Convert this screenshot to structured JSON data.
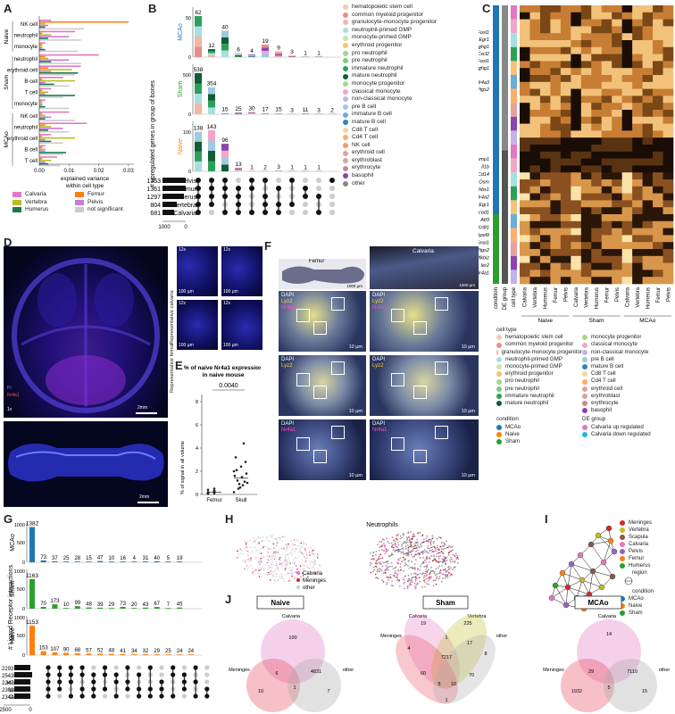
{
  "labels": {
    "A": "A",
    "B": "B",
    "C": "C",
    "D": "D",
    "E": "E",
    "F": "F",
    "G": "G",
    "H": "H",
    "I": "I",
    "J": "J"
  },
  "panelA": {
    "xlabel": "explained variance\nwithin cell type",
    "xticks": [
      "0.00",
      "0.01",
      "0.02",
      "0.03"
    ],
    "groups": [
      {
        "name": "Naive",
        "rows": [
          "NK cell",
          "neutrophil",
          "monocyte"
        ]
      },
      {
        "name": "Sham",
        "rows": [
          "neutrophil",
          "erythroid cell",
          "B cell",
          "T cell",
          "monocyte"
        ]
      },
      {
        "name": "MCAo",
        "rows": [
          "NK cell",
          "neutrophil",
          "erythroid cell",
          "B cell",
          "T cell"
        ]
      }
    ],
    "legend": [
      {
        "label": "Calvaria",
        "color": "#e377c2"
      },
      {
        "label": "Femur",
        "color": "#ff7f0e"
      },
      {
        "label": "Vertebra",
        "color": "#bcbd22"
      },
      {
        "label": "Pelvis",
        "color": "#c77cd8"
      },
      {
        "label": "Humerus",
        "color": "#1a7a4c"
      },
      {
        "label": "not significant",
        "color": "#cccccc"
      }
    ]
  },
  "panelB": {
    "ylabel": "# upregulated genes in group of bones",
    "conditions": [
      {
        "name": "MCAo",
        "color": "#1f77b4",
        "values": [
          62,
          12,
          40,
          6,
          4,
          19,
          9,
          3,
          1,
          1
        ],
        "ytick": "50"
      },
      {
        "name": "Sham",
        "color": "#2ca02c",
        "values": [
          538,
          354,
          15,
          25,
          30,
          17,
          15,
          3,
          11,
          3,
          2
        ],
        "ytick": "500"
      },
      {
        "name": "Naive",
        "color": "#ff7f0e",
        "values": [
          138,
          143,
          96,
          13,
          1,
          2,
          3,
          1,
          1,
          1
        ],
        "ytick": "100"
      }
    ],
    "setnames": [
      "Pelvis",
      "Femur",
      "Humerus",
      "Vertebra",
      "Calvaria"
    ],
    "setsizes": [
      "1353",
      "1361",
      "1297",
      "804",
      "681"
    ],
    "sizetick": "1000",
    "zero": "0",
    "legend": [
      {
        "label": "hematopoietic stem cell",
        "color": "#f4c9b4"
      },
      {
        "label": "common myeloid progenitor",
        "color": "#e88d8d"
      },
      {
        "label": "granulocyte-monocyte progenitor",
        "color": "#f2b8a2"
      },
      {
        "label": "neutrophil-primed GMP",
        "color": "#a6dfe0"
      },
      {
        "label": "monocyte-primed GMP",
        "color": "#c8e6a0"
      },
      {
        "label": "erythroid progenitor",
        "color": "#f6c27a"
      },
      {
        "label": "pro neutrophil",
        "color": "#9ed690"
      },
      {
        "label": "pre neutrophil",
        "color": "#7fc97f"
      },
      {
        "label": "immature neutrophil",
        "color": "#2ca05a"
      },
      {
        "label": "mature neutrophil",
        "color": "#0f5e36"
      },
      {
        "label": "monocyte progenitor",
        "color": "#a3d88c"
      },
      {
        "label": "classical monocyte",
        "color": "#f3a5c8"
      },
      {
        "label": "non-classical monocyte",
        "color": "#c3b3e8"
      },
      {
        "label": "pre B cell",
        "color": "#9ecae1"
      },
      {
        "label": "immature B cell",
        "color": "#6baed6"
      },
      {
        "label": "mature B cell",
        "color": "#3182bd"
      },
      {
        "label": "Cd8 T cell",
        "color": "#fdd0a2"
      },
      {
        "label": "Cd4 T cell",
        "color": "#fdae6b"
      },
      {
        "label": "NK cell",
        "color": "#f39c6b"
      },
      {
        "label": "erythroid cell",
        "color": "#e6a0a0"
      },
      {
        "label": "erythroblast",
        "color": "#d6a4a4"
      },
      {
        "label": "erythrocyte",
        "color": "#c88b8b"
      },
      {
        "label": "basophil",
        "color": "#8e44ad"
      },
      {
        "label": "other",
        "color": "#888888"
      }
    ]
  },
  "panelC": {
    "genes_top": [
      "Fosl1",
      "Egr1",
      "Ighg1",
      "Cxcl2",
      "Fosl1",
      "Ighg1",
      "",
      "Nr4a3",
      "Ptgs2"
    ],
    "genes_bottom": [
      "Csmp1",
      "Il1b",
      "Cd14",
      "Osm",
      "Thbs1",
      "Nr4a2",
      "Egr1",
      "Acod1",
      "Atf3",
      "Krt81",
      "Apol9",
      "Snai1",
      "Ptgs2",
      "Nfkbiz",
      "Ier2",
      "Nr4a1"
    ],
    "colheaders": [
      "condition",
      "DE group",
      "cell type"
    ],
    "bones": [
      "Calvaria",
      "Vertebra",
      "Humerus",
      "Femur",
      "Pelvis"
    ],
    "conditions": [
      "Naive",
      "Sham",
      "MCAo"
    ],
    "legend_celltype_title": "cell type",
    "legend_celltype_left": [
      {
        "label": "hematopoietic stem cell",
        "color": "#f4c9b4"
      },
      {
        "label": "common myeloid progenitor",
        "color": "#e88d8d"
      },
      {
        "label": "granulocyte-monocyte progenitor",
        "color": "#f2b8a2"
      },
      {
        "label": "neutrophil-primed GMP",
        "color": "#a6dfe0"
      },
      {
        "label": "monocyte-primed GMP",
        "color": "#c8e6a0"
      },
      {
        "label": "erythroid progenitor",
        "color": "#f6c27a"
      },
      {
        "label": "pro neutrophil",
        "color": "#9ed690"
      },
      {
        "label": "pre neutrophil",
        "color": "#7fc97f"
      },
      {
        "label": "immature neutrophil",
        "color": "#2ca05a"
      },
      {
        "label": "mature neutrophil",
        "color": "#0f5e36"
      }
    ],
    "legend_celltype_right": [
      {
        "label": "monocyte progenitor",
        "color": "#a3d88c"
      },
      {
        "label": "classical monocyte",
        "color": "#f3a5c8"
      },
      {
        "label": "non-classical monocyte",
        "color": "#c3b3e8"
      },
      {
        "label": "pre B cell",
        "color": "#9ecae1"
      },
      {
        "label": "mature B cell",
        "color": "#3182bd"
      },
      {
        "label": "Cd8 T cell",
        "color": "#fdd0a2"
      },
      {
        "label": "Cd4 T cell",
        "color": "#fdae6b"
      },
      {
        "label": "erythroid cell",
        "color": "#e6a0a0"
      },
      {
        "label": "erythroblast",
        "color": "#d6a4a4"
      },
      {
        "label": "erythrocyte",
        "color": "#c88b8b"
      },
      {
        "label": "basophil",
        "color": "#8e44ad"
      }
    ],
    "legend_condition_title": "condition",
    "legend_condition": [
      {
        "label": "MCAo",
        "color": "#1f77b4"
      },
      {
        "label": "Naive",
        "color": "#ff7f0e"
      },
      {
        "label": "Sham",
        "color": "#2ca02c"
      }
    ],
    "legend_de_title": "DE group",
    "legend_de": [
      {
        "label": "Calvaria up regulated",
        "color": "#e377c2"
      },
      {
        "label": "Calvaria down regulated",
        "color": "#17becf"
      }
    ]
  },
  "panelD": {
    "pi": "PI",
    "nr4a1": "Nr4a1",
    "mag": "1x",
    "scale": "2mm",
    "scale2": "2mm",
    "insetmag": "12x",
    "insetscale": "100 µm",
    "repcalv": "Representative calvaria",
    "repfemur": "Representative femur"
  },
  "panelE": {
    "title": "% of naive Nr4a1 expression\nin naive mouse",
    "pvalue": "0.0040",
    "ylabel": "% of signal in all volume",
    "yticks": [
      "0",
      "2",
      "4",
      "6",
      "8"
    ],
    "categories": [
      "Femur",
      "Skull"
    ]
  },
  "panelF": {
    "femur": "Femur",
    "calvaria": "Calvaria",
    "scale_big": "1000 µm",
    "scale_small": "10 µm",
    "dapi": "DAPI",
    "lyz2": "Lyz2",
    "nr4a1": "Nr4a1"
  },
  "panelG": {
    "ylabel": "# Ligand Receptor interactions",
    "conditions": [
      {
        "name": "MCAo",
        "color": "#1f77b4",
        "values": [
          1382,
          73,
          37,
          25,
          28,
          15,
          47,
          10,
          16,
          4,
          31,
          40,
          5,
          19
        ]
      },
      {
        "name": "Sham",
        "color": "#2ca02c",
        "values": [
          1163,
          70,
          173,
          10,
          99,
          48,
          39,
          29,
          73,
          20,
          43,
          67,
          7,
          45
        ]
      },
      {
        "name": "Naive",
        "color": "#ff7f0e",
        "values": [
          1153,
          153,
          107,
          90,
          68,
          57,
          52,
          48,
          41,
          34,
          32,
          29,
          25,
          24,
          24
        ]
      }
    ],
    "ytick1000": "1000",
    "ytick500": "500",
    "ytick0": "0",
    "setnames": [
      "Pelvis",
      "Femur",
      "Humerus",
      "Vertebra",
      "Calvaria"
    ],
    "setsizes": [
      "2293",
      "2543",
      "2247",
      "2302",
      "2344"
    ],
    "sizetick": "2500",
    "zero": "0"
  },
  "panelH": {
    "title": "Neutrophils",
    "legend": [
      {
        "label": "Calvaria",
        "color": "#e377c2"
      },
      {
        "label": "Meninges",
        "color": "#d62728"
      },
      {
        "label": "other",
        "color": "#cccccc"
      }
    ]
  },
  "panelI": {
    "region_title": "region",
    "regions": [
      {
        "label": "Meninges",
        "color": "#d62728"
      },
      {
        "label": "Vertebra",
        "color": "#bcbd22"
      },
      {
        "label": "Scapula",
        "color": "#8c564b"
      },
      {
        "label": "Calvaria",
        "color": "#e377c2"
      },
      {
        "label": "Pelvis",
        "color": "#9467bd"
      },
      {
        "label": "Femur",
        "color": "#ff7f0e"
      },
      {
        "label": "Humerus",
        "color": "#2ca02c"
      }
    ],
    "condition_title": "condition",
    "conditions": [
      {
        "label": "MCAo",
        "color": "#1f77b4"
      },
      {
        "label": "Naive",
        "color": "#ff7f0e"
      },
      {
        "label": "Sham",
        "color": "#2ca02c"
      }
    ]
  },
  "panelJ": {
    "naive": {
      "title": "Naive",
      "top": "Calvaria",
      "left": "Meninges",
      "right": "other",
      "n": [
        "100",
        "6",
        "4831",
        "10",
        "1",
        "7"
      ]
    },
    "sham": {
      "title": "Sham",
      "tl": "Calvaria",
      "tr": "Vertebra",
      "left": "Meninges",
      "right": "other",
      "n": [
        "19",
        "225",
        "1",
        "17",
        "4",
        "7217",
        "8",
        "60",
        "70",
        "5",
        "10",
        "1"
      ]
    },
    "mcao": {
      "title": "MCAo",
      "top": "Calvaria",
      "left": "Meninges",
      "right": "other",
      "n": [
        "14",
        "29",
        "7110",
        "1932",
        "5",
        "15"
      ]
    }
  }
}
